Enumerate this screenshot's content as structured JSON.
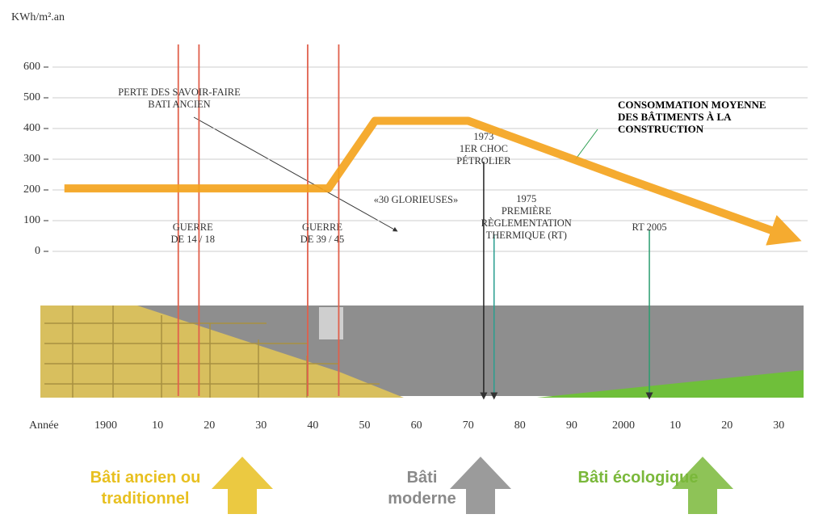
{
  "chart_data": {
    "type": "line",
    "y_label": "KWh/m².an",
    "x_label": "Année",
    "xlim": [
      1888,
      2034
    ],
    "ylim": [
      0,
      700
    ],
    "yticks": [
      0,
      100,
      200,
      300,
      400,
      500,
      600
    ],
    "xticks": [
      {
        "value": 1900,
        "label": "1900"
      },
      {
        "value": 1910,
        "label": "10"
      },
      {
        "value": 1920,
        "label": "20"
      },
      {
        "value": 1930,
        "label": "30"
      },
      {
        "value": 1940,
        "label": "40"
      },
      {
        "value": 1950,
        "label": "50"
      },
      {
        "value": 1960,
        "label": "60"
      },
      {
        "value": 1970,
        "label": "70"
      },
      {
        "value": 1980,
        "label": "80"
      },
      {
        "value": 1990,
        "label": "90"
      },
      {
        "value": 2000,
        "label": "2000"
      },
      {
        "value": 2010,
        "label": "10"
      },
      {
        "value": 2020,
        "label": "20"
      },
      {
        "value": 2030,
        "label": "30"
      }
    ],
    "grid": true,
    "series": [
      {
        "name": "CONSOMMATION MOYENNE DES BÂTIMENTS À LA CONSTRUCTION",
        "color": "#f5a31a",
        "x": [
          1892,
          1943,
          1952,
          1970,
          2000,
          2030
        ],
        "values": [
          205,
          205,
          425,
          425,
          240,
          60
        ]
      }
    ],
    "events": [
      {
        "x": 1914,
        "color": "#e0604c",
        "lines": [
          "GUERRE",
          "DE 14 / 18"
        ]
      },
      {
        "x": 1918,
        "color": "#e0604c",
        "lines": []
      },
      {
        "x": 1939,
        "color": "#e0604c",
        "lines": [
          "GUERRE",
          "DE 39 / 45"
        ]
      },
      {
        "x": 1945,
        "color": "#e0604c",
        "lines": []
      },
      {
        "x": 1973,
        "color": "#222222",
        "lines": [
          "1973",
          "1ER CHOC",
          "PÉTROLIER"
        ]
      },
      {
        "x": 1975,
        "color": "#2a9d8f",
        "lines": [
          "1975",
          "PREMIÈRE",
          "RÈGLEMENTATION",
          "THERMIQUE (RT)"
        ]
      },
      {
        "x": 2005,
        "color": "#2a9d6f",
        "lines": [
          "RT 2005"
        ]
      }
    ],
    "annotations": [
      {
        "lines": [
          "PERTE DES SAVOIR-FAIRE",
          "BATI ANCIEN"
        ]
      },
      {
        "lines": [
          "«30 GLORIEUSES»"
        ]
      }
    ],
    "eras": [
      {
        "label": "Bâti ancien ou traditionnel",
        "color": "#e8c020"
      },
      {
        "label": "Bâti moderne",
        "color": "#8a8a8a"
      },
      {
        "label": "Bâti écologique",
        "color": "#7ab83a"
      }
    ]
  }
}
